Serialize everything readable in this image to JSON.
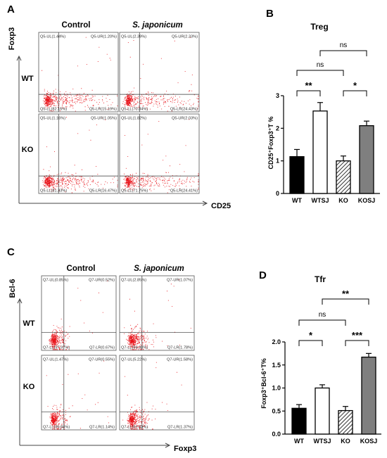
{
  "panel_labels": [
    "A",
    "B",
    "C",
    "D"
  ],
  "flow_panels": [
    {
      "id": "A",
      "col_titles": [
        "Control",
        "S. japonicum"
      ],
      "row_labels": [
        "WT",
        "KO"
      ],
      "y_label": "Foxp3",
      "x_label": "CD25",
      "cells": [
        [
          "Q5-UL(1.44%)",
          "Q5-UR(1.20%)",
          "Q5-LL(82.16%)",
          "Q5-LR(15.19%)"
        ],
        [
          "Q5-UL(2.39%)",
          "Q5-UR(2.33%)",
          "Q5-LL(70.84%)",
          "Q5-LR(24.43%)"
        ],
        [
          "Q5-UL(1.16%)",
          "Q5-UR(1.05%)",
          "Q5-LL(81.33%)",
          "Q5-LR(16.47%)"
        ],
        [
          "Q5-UL(1.82%)",
          "Q5-UR(2.03%)",
          "Q5-LL(71.75%)",
          "Q5-LR(24.41%)"
        ]
      ]
    },
    {
      "id": "C",
      "col_titles": [
        "Control",
        "S. japonicum"
      ],
      "row_labels": [
        "WT",
        "KO"
      ],
      "y_label": "Bcl-6",
      "x_label": "Foxp3",
      "cells": [
        [
          "Q7-UL(0.85%)",
          "Q7-UR(0.52%)",
          "Q7-LL(97.97%)",
          "Q7-LR(0.67%)"
        ],
        [
          "Q7-UL(2.85%)",
          "Q7-UR(1.07%)",
          "Q7-LL(94.30%)",
          "Q7-LR(1.78%)"
        ],
        [
          "Q7-UL(1.47%)",
          "Q7-UR(0.55%)",
          "Q7-LL(96.84%)",
          "Q7-LR(1.14%)"
        ],
        [
          "Q7-UL(5.22%)",
          "Q7-UR(1.58%)",
          "Q7-LL(91.83%)",
          "Q7-LR(1.37%)"
        ]
      ]
    }
  ],
  "chart_data": [
    {
      "panel": "B",
      "type": "bar",
      "title": "Treg",
      "ylabel": "CD25⁺Foxp3⁺T %",
      "categories": [
        "WT",
        "WTSJ",
        "KO",
        "KOSJ"
      ],
      "values": [
        1.13,
        2.53,
        1.0,
        2.08
      ],
      "errors": [
        0.22,
        0.26,
        0.15,
        0.14
      ],
      "fills": [
        "#000000",
        "#ffffff",
        "hatch",
        "#7f7f7f"
      ],
      "ylim": [
        0,
        3
      ],
      "yticks": [
        "0",
        "1",
        "2",
        "3"
      ],
      "comparisons": [
        {
          "from": 0,
          "to": 1,
          "label": "**",
          "level": 0
        },
        {
          "from": 2,
          "to": 3,
          "label": "*",
          "level": 0
        },
        {
          "from": 0,
          "to": 2,
          "label": "ns",
          "level": 1
        },
        {
          "from": 1,
          "to": 3,
          "label": "ns",
          "level": 2
        }
      ]
    },
    {
      "panel": "D",
      "type": "bar",
      "title": "Tfr",
      "ylabel": "Foxp3⁺Bcl-6⁺T%",
      "categories": [
        "WT",
        "WTSJ",
        "KO",
        "KOSJ"
      ],
      "values": [
        0.56,
        1.0,
        0.51,
        1.67
      ],
      "errors": [
        0.08,
        0.07,
        0.09,
        0.08
      ],
      "fills": [
        "#000000",
        "#ffffff",
        "hatch",
        "#7f7f7f"
      ],
      "ylim": [
        0,
        2.0
      ],
      "yticks": [
        "0.0",
        "0.5",
        "1.0",
        "1.5",
        "2.0"
      ],
      "comparisons": [
        {
          "from": 0,
          "to": 1,
          "label": "*",
          "level": 0
        },
        {
          "from": 2,
          "to": 3,
          "label": "***",
          "level": 0
        },
        {
          "from": 0,
          "to": 2,
          "label": "ns",
          "level": 1
        },
        {
          "from": 1,
          "to": 3,
          "label": "**",
          "level": 2
        }
      ]
    }
  ]
}
